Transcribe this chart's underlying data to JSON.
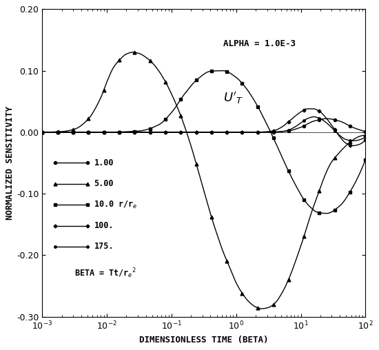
{
  "xlabel": "DIMENSIONLESS TIME (BETA)",
  "ylabel": "NORMALIZED SENSITIVITY",
  "alpha_text": "ALPHA = 1.0E-3",
  "beta_text": "BETA = Tt/r_e^2",
  "xlim": [
    0.001,
    100.0
  ],
  "ylim": [
    -0.3,
    0.2
  ],
  "yticks": [
    -0.3,
    -0.2,
    -0.1,
    0.0,
    0.1,
    0.2
  ],
  "legend_labels": [
    "1.00",
    "5.00",
    "10.0 r/r_e",
    "100.",
    "175."
  ],
  "markers": [
    "o",
    "^",
    "s",
    "D",
    "o"
  ],
  "markersizes": [
    3.0,
    3.5,
    3.0,
    2.5,
    2.5
  ],
  "n_markers": 22,
  "curves": {
    "r1": {
      "log_beta": [
        -3.0,
        -2.5,
        -2.0,
        -1.5,
        -1.0,
        -0.5,
        0.0,
        0.3,
        0.6,
        0.8,
        1.0,
        1.2,
        1.5,
        1.8,
        2.0
      ],
      "sens": [
        0.0,
        0.0,
        0.0,
        0.0,
        0.0,
        0.0,
        0.0,
        0.001,
        0.005,
        0.01,
        0.02,
        0.025,
        0.02,
        0.005,
        0.0
      ]
    },
    "r5": {
      "log_beta": [
        -3.0,
        -2.5,
        -2.2,
        -2.0,
        -1.9,
        -1.8,
        -1.6,
        -1.4,
        -1.2,
        -1.0,
        -0.8,
        -0.6,
        -0.4,
        -0.2,
        0.0,
        0.1,
        0.2,
        0.3,
        0.4,
        0.5,
        0.6,
        0.7,
        0.8,
        0.9,
        1.0,
        1.2,
        1.5,
        2.0
      ],
      "sens": [
        0.0,
        0.002,
        0.01,
        0.04,
        0.065,
        0.09,
        0.12,
        0.13,
        0.128,
        0.118,
        0.098,
        0.07,
        0.04,
        0.008,
        -0.03,
        -0.055,
        -0.09,
        -0.13,
        -0.175,
        -0.21,
        -0.235,
        -0.25,
        -0.255,
        -0.245,
        -0.225,
        -0.16,
        -0.07,
        -0.005
      ]
    },
    "r10": {
      "log_beta": [
        -3.0,
        -2.0,
        -1.5,
        -1.2,
        -1.0,
        -0.8,
        -0.6,
        -0.4,
        -0.2,
        0.0,
        0.2,
        0.4,
        0.6,
        0.8,
        1.0,
        1.2,
        1.4,
        1.6,
        1.8,
        2.0
      ],
      "sens": [
        0.0,
        0.0,
        0.002,
        0.015,
        0.04,
        0.068,
        0.09,
        0.1,
        0.097,
        0.08,
        0.045,
        0.0,
        -0.05,
        -0.095,
        -0.122,
        -0.135,
        -0.13,
        -0.105,
        -0.065,
        -0.02
      ]
    },
    "r100": {
      "log_beta": [
        -3.0,
        -1.0,
        -0.5,
        0.0,
        0.3,
        0.5,
        0.7,
        0.9,
        1.0,
        1.1,
        1.2,
        1.3,
        1.4,
        1.5,
        1.6,
        1.7,
        1.8,
        1.9,
        2.0
      ],
      "sens": [
        0.0,
        0.0,
        0.0,
        0.0,
        0.0,
        0.001,
        0.005,
        0.015,
        0.022,
        0.03,
        0.035,
        0.03,
        0.015,
        0.0,
        -0.015,
        -0.025,
        -0.025,
        -0.015,
        -0.005
      ]
    },
    "r175": {
      "log_beta": [
        -3.0,
        -0.5,
        0.0,
        0.3,
        0.5,
        0.7,
        0.9,
        1.0,
        1.1,
        1.2,
        1.3,
        1.4,
        1.5,
        1.6,
        1.7,
        1.8,
        1.9,
        2.0
      ],
      "sens": [
        0.0,
        0.0,
        0.0,
        0.0,
        0.0,
        0.001,
        0.005,
        0.01,
        0.017,
        0.022,
        0.02,
        0.01,
        0.0,
        -0.01,
        -0.015,
        -0.013,
        -0.007,
        -0.002
      ]
    }
  }
}
